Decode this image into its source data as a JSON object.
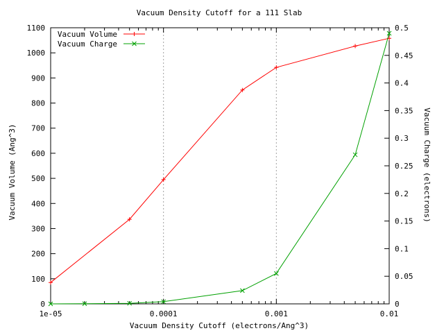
{
  "chart_data": {
    "type": "line",
    "title": "Vacuum Density Cutoff for a 111 Slab",
    "xlabel": "Vacuum Density Cutoff (electrons/Ang^3)",
    "ylabel": "Vacuum Volume (Ang^3)",
    "y2label": "Vacuum Charge (electrons)",
    "xscale": "log",
    "xlim": [
      1e-05,
      0.01
    ],
    "ylim": [
      0,
      1100
    ],
    "y2lim": [
      0,
      0.5
    ],
    "x_ticks": [
      "1e-05",
      "0.0001",
      "0.001",
      "0.01"
    ],
    "y_ticks": [
      "0",
      "100",
      "200",
      "300",
      "400",
      "500",
      "600",
      "700",
      "800",
      "900",
      "1000",
      "1100"
    ],
    "y2_ticks": [
      "0",
      "0.05",
      "0.1",
      "0.15",
      "0.2",
      "0.25",
      "0.3",
      "0.35",
      "0.4",
      "0.45",
      "0.5"
    ],
    "vertical_grid_at": [
      0.0001,
      0.001
    ],
    "legend_position": "top-left",
    "series": [
      {
        "name": "Vacuum Volume",
        "axis": "left",
        "marker": "+",
        "color": "#ff0000",
        "x": [
          1e-05,
          5e-05,
          0.0001,
          0.0005,
          0.001,
          0.005,
          0.01
        ],
        "y": [
          85,
          337,
          495,
          852,
          942,
          1027,
          1058
        ]
      },
      {
        "name": "Vacuum Charge",
        "axis": "right",
        "marker": "x",
        "color": "#00a000",
        "x": [
          1e-05,
          2e-05,
          5e-05,
          0.0001,
          0.0005,
          0.001,
          0.005,
          0.01
        ],
        "y": [
          0.0,
          0.0003,
          0.001,
          0.004,
          0.024,
          0.055,
          0.27,
          0.49
        ]
      }
    ]
  }
}
